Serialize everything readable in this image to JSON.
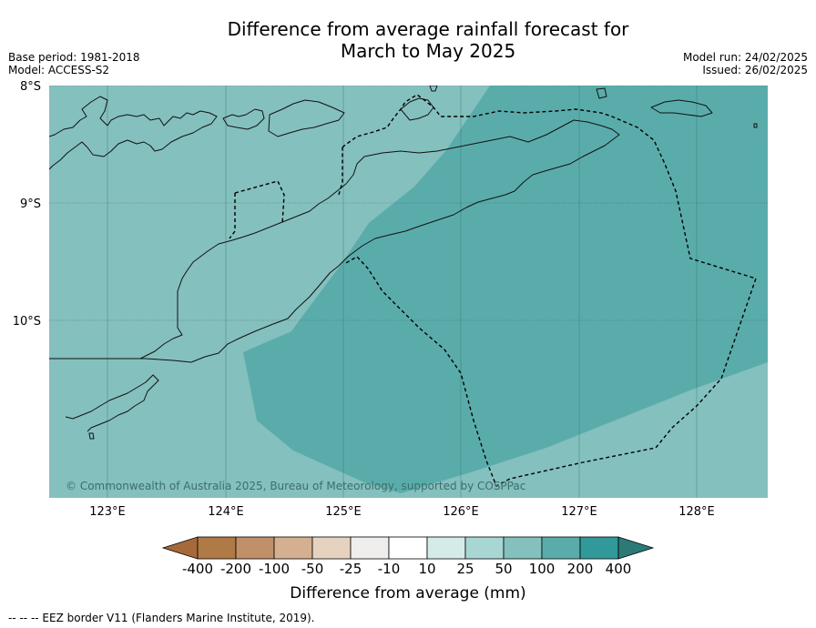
{
  "title_line1": "Difference from average rainfall forecast for",
  "title_line2": "March to May 2025",
  "meta_left": {
    "base_period": "Base period: 1981-2018",
    "model": "Model: ACCESS-S2"
  },
  "meta_right": {
    "model_run": "Model run: 24/02/2025",
    "issued": "Issued: 26/02/2025"
  },
  "map": {
    "lat_labels": [
      "8°S",
      "9°S",
      "10°S"
    ],
    "lon_labels": [
      "123°E",
      "124°E",
      "125°E",
      "126°E",
      "127°E",
      "128°E"
    ],
    "copyright": "© Commonwealth of Australia 2025, Bureau of Meteorology, supported by COSPPac",
    "field_colors": {
      "base": "#84c0be",
      "high": "#5aacab"
    }
  },
  "colorbar": {
    "tick_labels": [
      "-400",
      "-200",
      "-100",
      "-50",
      "-25",
      "-10",
      "10",
      "25",
      "50",
      "100",
      "200",
      "400"
    ],
    "colors": [
      "#a66a3a",
      "#b07a47",
      "#c09068",
      "#d4b090",
      "#e6d3bf",
      "#efeeec",
      "#ffffff",
      "#d4ebe8",
      "#a8d6d3",
      "#84c0be",
      "#5aacab",
      "#32999a",
      "#2b7a78"
    ],
    "label": "Difference from average (mm)"
  },
  "footer": "--  --  -- EEZ border V11 (Flanders Marine Institute, 2019)."
}
